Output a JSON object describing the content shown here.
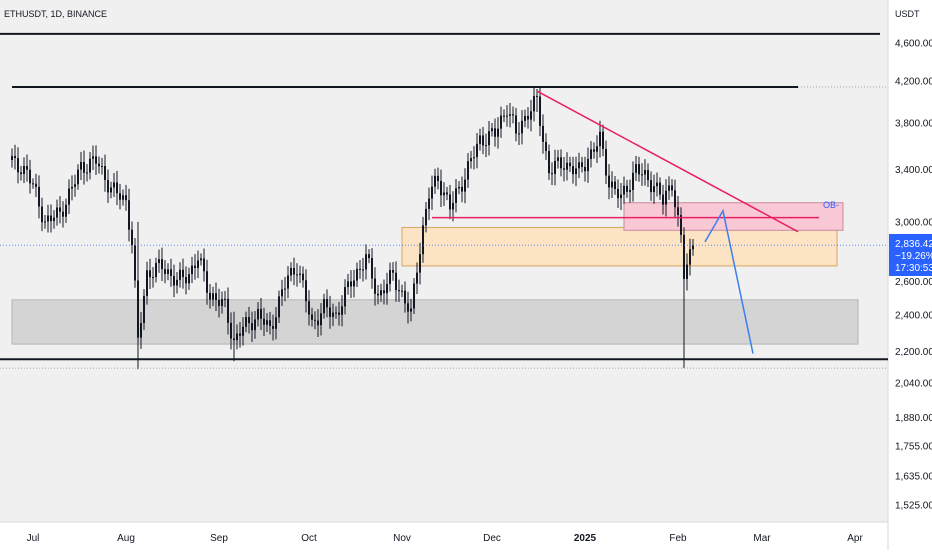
{
  "header": {
    "symbol_line": "ETHUSDT, 1D, BINANCE",
    "currency": "USDT"
  },
  "colors": {
    "background": "#f0f0f0",
    "axis_bg": "#ffffff",
    "candle": "#131722",
    "trendline": "#e91e63",
    "order_block_fill": "#f8c8d4",
    "demand_fill": "#fce3c4",
    "demand_stroke": "#d9a560",
    "support_fill": "#d4d4d4",
    "projection": "#3d7ef0",
    "price_badge": "#2962ff"
  },
  "chart_data": {
    "type": "candlestick",
    "timeframe": "1D",
    "y_axis": {
      "scale": "log",
      "ticks": [
        "4,600.00",
        "4,200.00",
        "3,800.00",
        "3,400.00",
        "3,000.00",
        "2,600.00",
        "2,400.00",
        "2,200.00",
        "2,040.00",
        "1,880.00",
        "1,755.00",
        "1,635.00",
        "1,525.00"
      ],
      "tick_values": [
        4600,
        4200,
        3800,
        3400,
        3000,
        2600,
        2400,
        2200,
        2040,
        1880,
        1755,
        1635,
        1525
      ]
    },
    "x_axis": {
      "labels": [
        {
          "text": "Jul",
          "bold": false
        },
        {
          "text": "Aug",
          "bold": false
        },
        {
          "text": "Sep",
          "bold": false
        },
        {
          "text": "Oct",
          "bold": false
        },
        {
          "text": "Nov",
          "bold": false
        },
        {
          "text": "Dec",
          "bold": false
        },
        {
          "text": "2025",
          "bold": true
        },
        {
          "text": "Feb",
          "bold": false
        },
        {
          "text": "Mar",
          "bold": false
        },
        {
          "text": "Apr",
          "bold": false
        }
      ]
    },
    "price_anchors": [
      [
        "2024-06-24",
        3450
      ],
      [
        "2024-06-29",
        3390
      ],
      [
        "2024-07-05",
        3000
      ],
      [
        "2024-07-10",
        3060
      ],
      [
        "2024-07-14",
        3250
      ],
      [
        "2024-07-17",
        3420
      ],
      [
        "2024-07-22",
        3470
      ],
      [
        "2024-07-27",
        3250
      ],
      [
        "2024-08-01",
        3150
      ],
      [
        "2024-08-03",
        2860
      ],
      [
        "2024-08-05",
        2250
      ],
      [
        "2024-08-08",
        2650
      ],
      [
        "2024-08-13",
        2700
      ],
      [
        "2024-08-18",
        2600
      ],
      [
        "2024-08-22",
        2650
      ],
      [
        "2024-08-25",
        2750
      ],
      [
        "2024-08-29",
        2520
      ],
      [
        "2024-09-03",
        2450
      ],
      [
        "2024-09-06",
        2250
      ],
      [
        "2024-09-09",
        2330
      ],
      [
        "2024-09-14",
        2400
      ],
      [
        "2024-09-18",
        2320
      ],
      [
        "2024-09-24",
        2630
      ],
      [
        "2024-09-27",
        2700
      ],
      [
        "2024-10-02",
        2350
      ],
      [
        "2024-10-06",
        2440
      ],
      [
        "2024-10-10",
        2400
      ],
      [
        "2024-10-15",
        2600
      ],
      [
        "2024-10-20",
        2750
      ],
      [
        "2024-10-24",
        2510
      ],
      [
        "2024-10-29",
        2640
      ],
      [
        "2024-11-04",
        2400
      ],
      [
        "2024-11-06",
        2700
      ],
      [
        "2024-11-10",
        3200
      ],
      [
        "2024-11-13",
        3330
      ],
      [
        "2024-11-17",
        3100
      ],
      [
        "2024-11-22",
        3350
      ],
      [
        "2024-11-27",
        3650
      ],
      [
        "2024-12-02",
        3700
      ],
      [
        "2024-12-06",
        3950
      ],
      [
        "2024-12-09",
        3700
      ],
      [
        "2024-12-13",
        3900
      ],
      [
        "2024-12-16",
        4000
      ],
      [
        "2024-12-18",
        3650
      ],
      [
        "2024-12-20",
        3400
      ],
      [
        "2024-12-25",
        3450
      ],
      [
        "2024-12-30",
        3380
      ],
      [
        "2025-01-06",
        3650
      ],
      [
        "2025-01-09",
        3300
      ],
      [
        "2025-01-13",
        3170
      ],
      [
        "2025-01-18",
        3400
      ],
      [
        "2025-01-24",
        3280
      ],
      [
        "2025-01-27",
        3150
      ],
      [
        "2025-01-30",
        3300
      ],
      [
        "2025-02-01",
        3000
      ],
      [
        "2025-02-02",
        2870
      ],
      [
        "2025-02-03",
        2640
      ],
      [
        "2025-02-05",
        2780
      ],
      [
        "2025-02-06",
        2836.42
      ]
    ],
    "annotations": {
      "top_horizontal_line": {
        "price": 4700
      },
      "high_resistance_line": {
        "price": 4140,
        "from": "2024-06-24",
        "to": "2025-03-13"
      },
      "low_support_line": {
        "price": 2160
      },
      "dotted_low_line": {
        "price": 2115
      },
      "descending_trendline": {
        "from": [
          "2024-12-16",
          4100
        ],
        "to": [
          "2025-03-13",
          2930
        ]
      },
      "pink_horizontal_line": {
        "price": 3030,
        "from": "2024-11-11",
        "to": "2025-03-20"
      },
      "order_block": {
        "label": "OB-",
        "from": "2025-01-14",
        "to": "2025-03-28",
        "top": 3140,
        "bottom": 2940
      },
      "demand_zone": {
        "from": "2024-11-01",
        "to": "2025-03-26",
        "top": 2960,
        "bottom": 2700
      },
      "support_zone": {
        "from": "2024-06-24",
        "to": "2025-04-02",
        "top": 2490,
        "bottom": 2240
      },
      "projection_path": [
        [
          "2025-02-10",
          2860
        ],
        [
          "2025-02-16",
          3080
        ],
        [
          "2025-02-26",
          2190
        ]
      ],
      "current_price_line": {
        "price": 2836.42
      }
    },
    "price_badge": {
      "price": "2,836.42",
      "change": "−19.26%",
      "countdown": "17:30:53"
    }
  }
}
